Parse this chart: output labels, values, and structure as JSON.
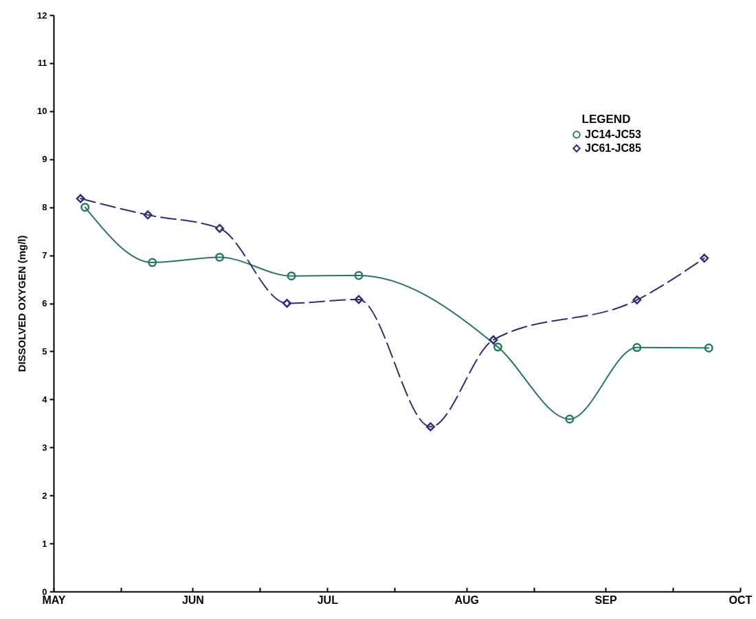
{
  "chart_data": {
    "type": "line",
    "ylabel": "DISSOLVED OXYGEN (mg/l)",
    "legend_title": "LEGEND",
    "legend": "top right",
    "grid": false,
    "xlim": [
      "--05-01",
      "--10-01"
    ],
    "xticks": [
      {
        "value": "--05-01",
        "label": "MAY"
      },
      {
        "value": "--05-16",
        "label": null
      },
      {
        "value": "--06-01",
        "label": "JUN"
      },
      {
        "value": "--06-16",
        "label": null
      },
      {
        "value": "--07-01",
        "label": "JUL"
      },
      {
        "value": "--07-16",
        "label": null
      },
      {
        "value": "--08-01",
        "label": "AUG"
      },
      {
        "value": "--08-16",
        "label": null
      },
      {
        "value": "--09-01",
        "label": "SEP"
      },
      {
        "value": "--09-16",
        "label": null
      },
      {
        "value": "--10-01",
        "label": "OCT"
      }
    ],
    "ylim": [
      0,
      12
    ],
    "yticks": [
      0,
      1,
      2,
      3,
      4,
      5,
      6,
      7,
      8,
      9,
      10,
      11,
      12
    ],
    "series": [
      {
        "name": "JC14-JC53",
        "color": "#23795a",
        "marker": "circle",
        "line_style": "solid",
        "x": [
          "--05-08",
          "--05-23",
          "--06-07",
          "--06-23",
          "--07-08",
          "--08-08",
          "--08-24",
          "--09-08",
          "--09-24"
        ],
        "values": [
          8.0,
          6.85,
          6.96,
          6.57,
          6.58,
          5.09,
          3.59,
          5.08,
          5.07
        ]
      },
      {
        "name": "JC61-JC85",
        "color": "#2b2f7a",
        "marker": "diamond",
        "line_style": "dashed",
        "x": [
          "--05-07",
          "--05-22",
          "--06-07",
          "--06-22",
          "--07-08",
          "--07-24",
          "--08-07",
          "--09-08",
          "--09-23"
        ],
        "values": [
          8.18,
          7.84,
          7.56,
          6.0,
          6.08,
          3.43,
          5.24,
          6.07,
          6.94
        ]
      }
    ]
  }
}
